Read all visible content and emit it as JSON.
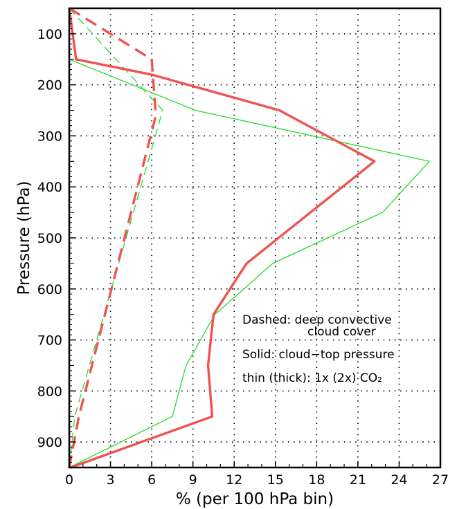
{
  "chart_data": {
    "type": "line",
    "title": "",
    "xlabel": "% (per 100 hPa bin)",
    "ylabel": "Pressure (hPa)",
    "xlim": [
      0,
      27
    ],
    "ylim": [
      950,
      50
    ],
    "y_inverted": true,
    "x_ticks": [
      0,
      3,
      6,
      9,
      12,
      15,
      18,
      21,
      24,
      27
    ],
    "y_ticks": [
      100,
      200,
      300,
      400,
      500,
      600,
      700,
      800,
      900
    ],
    "grid": {
      "style": "dotted",
      "x": true,
      "y": true
    },
    "series": [
      {
        "color": "#f0524f",
        "width": "thick",
        "dash": false,
        "x": [
          0,
          0.5,
          6,
          15.3,
          22.2,
          12.9,
          10.5,
          10.1,
          10.4,
          0.1
        ],
        "y": [
          50,
          150,
          180,
          250,
          350,
          550,
          650,
          750,
          850,
          950
        ]
      },
      {
        "color": "#f0524f",
        "width": "thick",
        "dash": true,
        "x": [
          0,
          6,
          6.3,
          0.7,
          0
        ],
        "y": [
          50,
          150,
          260,
          850,
          950
        ]
      },
      {
        "color": "#22dd22",
        "width": "thin",
        "dash": false,
        "x": [
          0,
          0,
          9.2,
          26.2,
          22.8,
          14.8,
          10.6,
          8.5,
          7.5,
          0
        ],
        "y": [
          50,
          150,
          250,
          350,
          450,
          550,
          650,
          750,
          850,
          950
        ]
      },
      {
        "color": "#22dd22",
        "width": "thin",
        "dash": true,
        "x": [
          0,
          6.8,
          0.4,
          0
        ],
        "y": [
          50,
          250,
          850,
          950
        ]
      }
    ]
  },
  "annotations": {
    "dashed_line1": "Dashed: deep convective",
    "dashed_line2": "cloud cover",
    "solid": "Solid: cloud−top pressure",
    "thin_thick": "thin (thick): 1x (2x) CO₂"
  }
}
